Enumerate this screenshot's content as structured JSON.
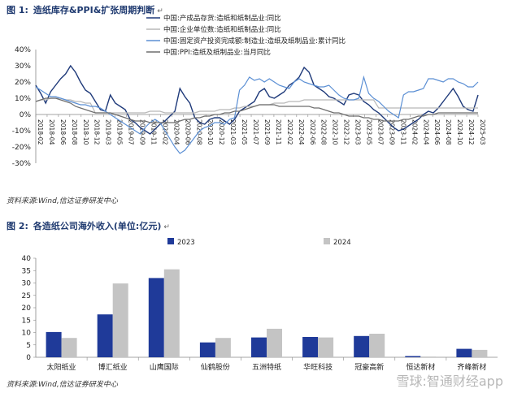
{
  "figure1": {
    "label": "图 1:",
    "title": "造纸库存&PPI&扩张周期判断",
    "source": "资料来源:Wind,信达证券研发中心"
  },
  "figure2": {
    "label": "图 2:",
    "title": "各造纸公司海外收入(单位:亿元)",
    "source": "资料来源:Wind,信达证券研发中心"
  },
  "watermark": "雪球:智通财经app",
  "chart_data": [
    {
      "type": "line",
      "ylim": [
        -30,
        40
      ],
      "yticks": [
        -30,
        -20,
        -10,
        0,
        10,
        20,
        30,
        40
      ],
      "ytick_format": "percent",
      "grid": false,
      "legend_position": "top-right",
      "x_start": "2018-02",
      "x_labels": [
        "2018-02",
        "2018-04",
        "2018-06",
        "2018-08",
        "2018-10",
        "2018-12",
        "2019-03",
        "2019-05",
        "2019-07",
        "2019-09",
        "2019-11",
        "2020-02",
        "2020-04",
        "2020-06",
        "2020-08",
        "2020-10",
        "2020-12",
        "2021-03",
        "2021-05",
        "2021-07",
        "2021-09",
        "2021-11",
        "2022-02",
        "2022-04",
        "2022-06",
        "2022-08",
        "2022-10",
        "2022-12",
        "2023-03",
        "2023-05",
        "2023-07",
        "2023-09",
        "2023-11",
        "2024-02",
        "2024-04",
        "2024-06",
        "2024-08",
        "2024-10",
        "2024-12",
        "2025-03"
      ],
      "series": [
        {
          "name": "中国:产成品存货:造纸和纸制品业:同比",
          "color": "#1f3a7a",
          "values": [
            18,
            13,
            7,
            14,
            18,
            22,
            25,
            30,
            26,
            20,
            15,
            13,
            8,
            3,
            2,
            12,
            7,
            5,
            3,
            -3,
            -5,
            -8,
            -10,
            -12,
            -9,
            -6,
            -4,
            -1,
            2,
            16,
            11,
            7,
            -2,
            -5,
            -6,
            -3,
            -2,
            -2,
            -4,
            -6,
            -3,
            2,
            4,
            6,
            8,
            14,
            16,
            11,
            10,
            12,
            14,
            18,
            20,
            23,
            29,
            26,
            18,
            16,
            14,
            11,
            10,
            8,
            6,
            12,
            13,
            12,
            8,
            6,
            3,
            1,
            -2,
            -5,
            -8,
            -10,
            -9,
            -7,
            -5,
            -3,
            0,
            2,
            1,
            4,
            8,
            12,
            16,
            11,
            5,
            3,
            2,
            12
          ]
        },
        {
          "name": "中国:企业单位数:造纸和纸制品业:同比",
          "color": "#b8b8b8",
          "values": [
            8,
            9,
            9,
            10,
            10,
            10,
            9,
            9,
            8,
            8,
            7,
            7,
            1,
            1,
            1,
            1,
            1,
            1,
            1,
            1,
            1,
            1,
            1,
            2,
            2,
            2,
            1,
            1,
            1,
            1,
            1,
            1,
            1,
            2,
            2,
            2,
            2,
            3,
            3,
            3,
            4,
            4,
            5,
            5,
            5,
            6,
            6,
            6,
            7,
            7,
            7,
            8,
            8,
            8,
            9,
            9,
            9,
            9,
            9,
            9,
            9,
            9,
            9,
            9,
            9,
            9,
            9,
            9,
            9,
            4,
            4,
            4,
            4,
            4,
            4,
            4,
            4,
            4,
            4,
            4,
            4,
            4,
            4,
            4,
            4,
            4,
            4,
            4,
            4,
            4
          ]
        },
        {
          "name": "中国:固定资产投资完成额:制造业:造纸及纸制品业:累计同比",
          "color": "#5b8fd4",
          "values": [
            17,
            15,
            13,
            11,
            11,
            10,
            9,
            8,
            7,
            6,
            6,
            5,
            5,
            4,
            2,
            0,
            -2,
            -4,
            -6,
            -8,
            -10,
            -12,
            -8,
            -5,
            -3,
            -5,
            -10,
            -15,
            -20,
            -24,
            -22,
            -18,
            -14,
            -10,
            -8,
            -7,
            -5,
            -5,
            -6,
            -3,
            -2,
            15,
            18,
            23,
            21,
            22,
            20,
            22,
            20,
            18,
            17,
            16,
            20,
            22,
            20,
            19,
            18,
            17,
            17,
            18,
            15,
            12,
            10,
            9,
            9,
            10,
            23,
            13,
            10,
            8,
            5,
            2,
            0,
            -2,
            12,
            14,
            14,
            15,
            16,
            22,
            22,
            21,
            20,
            22,
            22,
            20,
            19,
            17,
            17,
            20
          ]
        },
        {
          "name": "中国:PPI:造纸及纸制品业:当月同比",
          "color": "#6e6e6e",
          "values": [
            8,
            9,
            10,
            10,
            10,
            9,
            8,
            7,
            5,
            4,
            3,
            2,
            1,
            1,
            1,
            1,
            0,
            -1,
            -2,
            -3,
            -4,
            -4,
            -4,
            -5,
            -5,
            -5,
            -5,
            -5,
            -5,
            -4,
            -3,
            -3,
            -2,
            -2,
            -1,
            -1,
            0,
            0,
            1,
            1,
            2,
            2,
            3,
            4,
            5,
            6,
            6,
            6,
            6,
            5,
            5,
            5,
            5,
            5,
            5,
            5,
            4,
            4,
            3,
            2,
            1,
            1,
            0,
            -1,
            -1,
            -1,
            -2,
            -2,
            -3,
            -3,
            -4,
            -4,
            -4,
            -4,
            -3,
            -3,
            -2,
            -1,
            -1,
            0,
            0,
            1,
            1,
            1,
            1,
            1,
            1,
            1,
            1,
            1
          ]
        }
      ]
    },
    {
      "type": "bar",
      "ylim": [
        0,
        40
      ],
      "yticks": [
        0,
        5,
        10,
        15,
        20,
        25,
        30,
        35,
        40
      ],
      "grid": false,
      "legend_position": "top-center",
      "categories": [
        "太阳纸业",
        "博汇纸业",
        "山鹰国际",
        "仙鹤股份",
        "五洲特纸",
        "华旺科技",
        "冠豪高新",
        "恒达新材",
        "齐峰新材"
      ],
      "series": [
        {
          "name": "2023",
          "color": "#1f3a99",
          "values": [
            10.2,
            17.3,
            32.0,
            6.0,
            8.0,
            8.2,
            8.6,
            0.5,
            3.4
          ]
        },
        {
          "name": "2024",
          "color": "#c4c4c4",
          "values": [
            7.8,
            29.8,
            35.5,
            7.8,
            11.5,
            8.0,
            9.5,
            0.3,
            3.0
          ]
        }
      ]
    }
  ]
}
